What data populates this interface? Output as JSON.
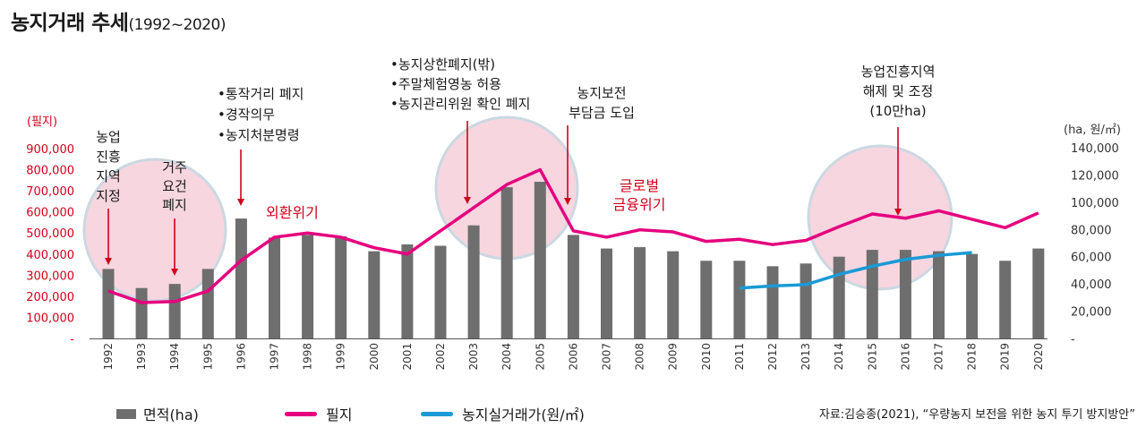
{
  "title": {
    "main": "농지거래 추세",
    "period": "(1992~2020)"
  },
  "chart_data": {
    "type": "bar",
    "categories": [
      "1992",
      "1993",
      "1994",
      "1995",
      "1996",
      "1997",
      "1998",
      "1999",
      "2000",
      "2001",
      "2002",
      "2003",
      "2004",
      "2005",
      "2006",
      "2007",
      "2008",
      "2009",
      "2010",
      "2011",
      "2012",
      "2013",
      "2014",
      "2015",
      "2016",
      "2017",
      "2018",
      "2019",
      "2020"
    ],
    "left_axis": {
      "label": "(필지)",
      "ticks": [
        "900,000",
        "800,000",
        "700,000",
        "600,000",
        "500,000",
        "400,000",
        "300,000",
        "200,000",
        "100,000",
        "-"
      ],
      "ylim": [
        0,
        900000
      ]
    },
    "right_axis": {
      "label": "(ha, 원/㎡)",
      "ticks": [
        "140,000",
        "120,000",
        "100,000",
        "80,000",
        "60,000",
        "40,000",
        "20,000",
        "-"
      ],
      "ylim": [
        0,
        140000
      ]
    },
    "series": [
      {
        "name": "면적(ha)",
        "kind": "bar",
        "axis": "right",
        "color": "#6e6e6e",
        "values": [
          51000,
          37000,
          40000,
          51000,
          88000,
          74000,
          76000,
          75000,
          64000,
          69000,
          68000,
          83000,
          111000,
          115000,
          76000,
          66000,
          67000,
          64000,
          57000,
          57000,
          53000,
          55000,
          60000,
          65000,
          65000,
          64000,
          62000,
          57000,
          66000
        ]
      },
      {
        "name": "필지",
        "kind": "line",
        "axis": "left",
        "color": "#e6007e",
        "values": [
          225000,
          170000,
          175000,
          225000,
          370000,
          480000,
          500000,
          480000,
          430000,
          400000,
          510000,
          620000,
          730000,
          800000,
          510000,
          480000,
          515000,
          505000,
          460000,
          470000,
          445000,
          465000,
          530000,
          590000,
          570000,
          605000,
          565000,
          525000,
          595000
        ]
      },
      {
        "name": "농지실거래가(원/㎡)",
        "kind": "line",
        "axis": "right",
        "color": "#1a9ad6",
        "x": [
          "2011",
          "2012",
          "2013",
          "2014",
          "2015",
          "2016",
          "2017",
          "2018"
        ],
        "values": [
          37000,
          38500,
          39500,
          47000,
          53000,
          58000,
          61000,
          63000
        ]
      }
    ],
    "annotations": [
      {
        "lines": [
          "농업",
          "진흥",
          "지역",
          "지정"
        ]
      },
      {
        "lines": [
          "거주",
          "요건",
          "폐지"
        ]
      },
      {
        "lines": [
          "•통작거리 폐지",
          "•경작의무",
          "•농지처분명령"
        ]
      },
      {
        "lines": [
          "외환위기"
        ]
      },
      {
        "lines": [
          "•농지상한폐지(밖)",
          "•주말체험영농 허용",
          "•농지관리위원 확인 폐지"
        ]
      },
      {
        "lines": [
          "농지보전",
          "부담금 도입"
        ]
      },
      {
        "lines": [
          "글로벌",
          "금융위기"
        ]
      },
      {
        "lines": [
          "농업진흥지역",
          "해제 및 조정",
          "(10만ha)"
        ]
      }
    ]
  },
  "source": "자료:김승종(2021), “우량농지 보전을 위한 농지 투기 방지방안”"
}
